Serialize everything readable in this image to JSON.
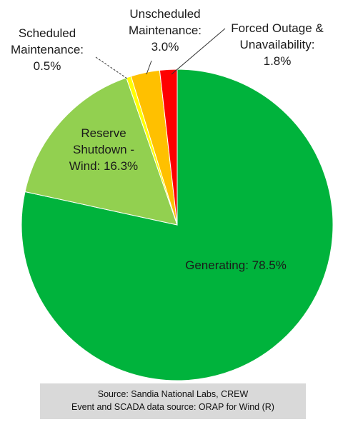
{
  "chart_data": {
    "type": "pie",
    "slices": [
      {
        "label_lines": [
          "Generating: 78.5%"
        ],
        "label": "Generating",
        "value": 78.5,
        "color": "#00b33c"
      },
      {
        "label_lines": [
          "Reserve",
          "Shutdown -",
          "Wind: 16.3%"
        ],
        "label": "Reserve Shutdown - Wind",
        "value": 16.3,
        "color": "#92d050"
      },
      {
        "label_lines": [
          "Scheduled",
          "Maintenance:",
          "0.5%"
        ],
        "label": "Scheduled Maintenance",
        "value": 0.5,
        "color": "#ffff00"
      },
      {
        "label_lines": [
          "Unscheduled",
          "Maintenance:",
          "3.0%"
        ],
        "label": "Unscheduled Maintenance",
        "value": 3.0,
        "color": "#ffc000"
      },
      {
        "label_lines": [
          "Forced Outage &",
          "Unavailability:",
          "1.8%"
        ],
        "label": "Forced Outage & Unavailability",
        "value": 1.8,
        "color": "#ff0000"
      }
    ],
    "start_angle_deg": 0,
    "direction": "clockwise"
  },
  "source": {
    "line1": "Source: Sandia National Labs, CREW",
    "line2": "Event and SCADA data source: ORAP for Wind (R)"
  }
}
